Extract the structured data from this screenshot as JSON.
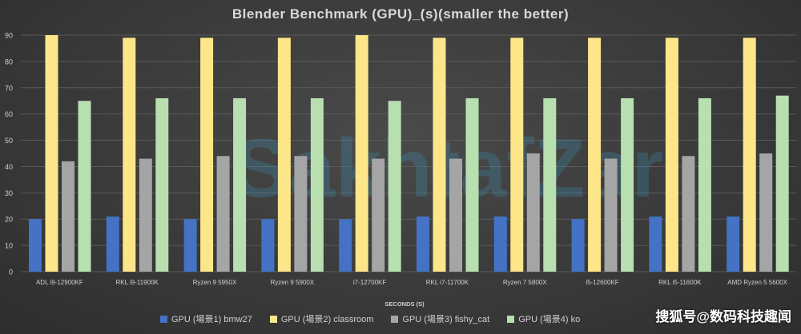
{
  "chart_data": {
    "type": "bar",
    "title": "Blender Benchmark (GPU)_(s)(smaller  the better)",
    "xlabel": "SECONDS (S)",
    "ylabel": "",
    "ylim": [
      0,
      90
    ],
    "yticks": [
      0,
      10,
      20,
      30,
      40,
      50,
      60,
      70,
      80,
      90
    ],
    "grid": true,
    "legend_position": "bottom",
    "categories": [
      "ADL i9-12900KF",
      "RKL i9-11900K",
      "Ryzen 9 5950X",
      "Ryzen 9 5900X",
      "i7-12700KF",
      "RKL i7-11700K",
      "Ryzen 7 5800X",
      "i5-12600KF",
      "RKL i5-11600K",
      "AMD Ryzen 5 5600X"
    ],
    "series": [
      {
        "name": "GPU (場景1) bmw27",
        "color": "#4472c4",
        "values": [
          20,
          21,
          20,
          20,
          20,
          21,
          21,
          20,
          21,
          21
        ]
      },
      {
        "name": "GPU (場景2) classroom",
        "color": "#fde68a",
        "values": [
          90,
          89,
          89,
          89,
          90,
          89,
          89,
          89,
          89,
          89
        ]
      },
      {
        "name": "GPU (場景3) fishy_cat",
        "color": "#a5a5a5",
        "values": [
          42,
          43,
          44,
          44,
          43,
          43,
          45,
          43,
          44,
          45
        ]
      },
      {
        "name": "GPU (場景4) ko",
        "color": "#b7dfb0",
        "values": [
          65,
          66,
          66,
          66,
          65,
          66,
          66,
          66,
          66,
          67
        ]
      }
    ]
  },
  "watermark_text": "搜狐号@数码科技趣闻",
  "background_watermark": "SakhtafZar"
}
